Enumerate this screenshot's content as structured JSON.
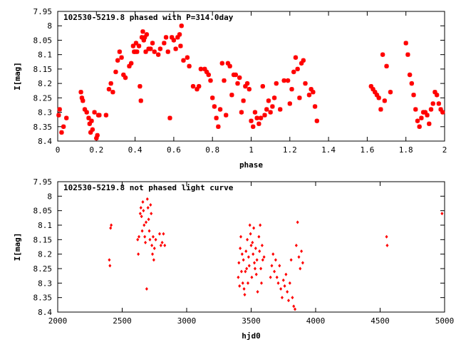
{
  "chart_data": [
    {
      "type": "scatter",
      "title": "102530-5219.8 phased with P=314.0day",
      "xlabel": "phase",
      "ylabel": "I[mag]",
      "xlim": [
        0,
        2
      ],
      "ylim": [
        8.4,
        7.95
      ],
      "y_inverted": true,
      "grid": false,
      "marker": "asterisk",
      "color": "#ff0000",
      "xticks": [
        "0",
        "0.2",
        "0.4",
        "0.6",
        "0.8",
        "1",
        "1.2",
        "1.4",
        "1.6",
        "1.8",
        "2"
      ],
      "yticks": [
        "7.95",
        "8",
        "8.05",
        "8.1",
        "8.15",
        "8.2",
        "8.25",
        "8.3",
        "8.35",
        "8.4"
      ],
      "x": [
        0.005,
        0.01,
        0.02,
        0.03,
        0.045,
        0.12,
        0.125,
        0.13,
        0.14,
        0.15,
        0.16,
        0.165,
        0.17,
        0.175,
        0.18,
        0.19,
        0.2,
        0.205,
        0.21,
        0.215,
        0.25,
        0.265,
        0.275,
        0.285,
        0.3,
        0.31,
        0.32,
        0.33,
        0.34,
        0.35,
        0.37,
        0.38,
        0.39,
        0.395,
        0.4,
        0.405,
        0.41,
        0.42,
        0.425,
        0.43,
        0.435,
        0.44,
        0.445,
        0.45,
        0.455,
        0.46,
        0.47,
        0.48,
        0.49,
        0.5,
        0.52,
        0.53,
        0.55,
        0.56,
        0.57,
        0.58,
        0.59,
        0.6,
        0.61,
        0.62,
        0.63,
        0.635,
        0.64,
        0.65,
        0.67,
        0.68,
        0.7,
        0.72,
        0.73,
        0.74,
        0.76,
        0.77,
        0.78,
        0.79,
        0.8,
        0.81,
        0.82,
        0.83,
        0.84,
        0.85,
        0.86,
        0.87,
        0.88,
        0.89,
        0.9,
        0.91,
        0.92,
        0.93,
        0.94,
        0.95,
        0.96,
        0.97,
        0.98,
        0.99,
        1.0,
        1.01,
        1.02,
        1.03,
        1.04,
        1.05,
        1.06,
        1.07,
        1.08,
        1.09,
        1.1,
        1.11,
        1.12,
        1.13,
        1.15,
        1.17,
        1.19,
        1.2,
        1.21,
        1.22,
        1.23,
        1.24,
        1.25,
        1.26,
        1.27,
        1.28,
        1.3,
        1.31,
        1.32,
        1.33,
        1.34,
        1.62,
        1.63,
        1.64,
        1.65,
        1.66,
        1.67,
        1.68,
        1.69,
        1.7,
        1.72,
        1.8,
        1.81,
        1.82,
        1.83,
        1.84,
        1.85,
        1.86,
        1.87,
        1.88,
        1.89,
        1.9,
        1.91,
        1.92,
        1.93,
        1.94,
        1.95,
        1.96,
        1.97,
        1.98,
        1.99
      ],
      "y": [
        8.31,
        8.29,
        8.37,
        8.35,
        8.32,
        8.23,
        8.25,
        8.26,
        8.29,
        8.3,
        8.32,
        8.34,
        8.37,
        8.33,
        8.36,
        8.3,
        8.39,
        8.38,
        8.31,
        8.31,
        8.31,
        8.22,
        8.2,
        8.23,
        8.16,
        8.12,
        8.09,
        8.11,
        8.17,
        8.18,
        8.14,
        8.13,
        8.07,
        8.09,
        8.09,
        8.06,
        8.09,
        8.07,
        8.21,
        8.26,
        8.04,
        8.02,
        8.05,
        8.04,
        8.09,
        8.03,
        8.08,
        8.08,
        8.06,
        8.09,
        8.1,
        8.08,
        8.06,
        8.04,
        8.09,
        8.32,
        8.04,
        8.05,
        8.08,
        8.04,
        8.03,
        8.07,
        8,
        8.12,
        8.11,
        8.14,
        8.21,
        8.22,
        8.21,
        8.15,
        8.15,
        8.16,
        8.17,
        8.19,
        8.25,
        8.28,
        8.32,
        8.35,
        8.29,
        8.13,
        8.19,
        8.31,
        8.13,
        8.14,
        8.24,
        8.17,
        8.17,
        8.2,
        8.18,
        8.3,
        8.26,
        8.21,
        8.2,
        8.22,
        8.33,
        8.35,
        8.3,
        8.32,
        8.34,
        8.32,
        8.21,
        8.31,
        8.29,
        8.26,
        8.3,
        8.28,
        8.25,
        8.2,
        8.29,
        8.19,
        8.19,
        8.27,
        8.22,
        8.16,
        8.11,
        8.15,
        8.25,
        8.13,
        8.12,
        8.2,
        8.24,
        8.22,
        8.23,
        8.28,
        8.33,
        8.21,
        8.22,
        8.23,
        8.24,
        8.25,
        8.29,
        8.1,
        8.26,
        8.14,
        8.23,
        8.06,
        8.1,
        8.17,
        8.2,
        8.24,
        8.29,
        8.33,
        8.35,
        8.32,
        8.3,
        8.3,
        8.31,
        8.34,
        8.29,
        8.27,
        8.23,
        8.24,
        8.27,
        8.29,
        8.3
      ]
    },
    {
      "type": "scatter",
      "title": "102530-5219.8 not phased light curve",
      "xlabel": "hjd0",
      "ylabel": "I[mag]",
      "xlim": [
        2000,
        5000
      ],
      "ylim": [
        8.4,
        7.95
      ],
      "y_inverted": true,
      "grid": false,
      "marker": "diamond",
      "color": "#ff0000",
      "xticks": [
        "2000",
        "2500",
        "3000",
        "3500",
        "4000",
        "4500",
        "5000"
      ],
      "yticks": [
        "7.95",
        "8",
        "8.05",
        "8.1",
        "8.15",
        "8.2",
        "8.25",
        "8.3",
        "8.35",
        "8.4"
      ],
      "x": [
        2400,
        2405,
        2410,
        2415,
        2620,
        2625,
        2630,
        2640,
        2645,
        2650,
        2655,
        2660,
        2665,
        2670,
        2675,
        2680,
        2685,
        2690,
        2695,
        2700,
        2705,
        2710,
        2715,
        2720,
        2725,
        2730,
        2735,
        2740,
        2745,
        2750,
        2760,
        2790,
        2800,
        2810,
        2820,
        2830,
        3400,
        3405,
        3410,
        3415,
        3420,
        3425,
        3430,
        3435,
        3440,
        3445,
        3450,
        3455,
        3460,
        3465,
        3470,
        3475,
        3480,
        3485,
        3490,
        3495,
        3500,
        3505,
        3510,
        3515,
        3520,
        3525,
        3530,
        3535,
        3540,
        3545,
        3550,
        3560,
        3565,
        3570,
        3575,
        3580,
        3585,
        3590,
        3600,
        3650,
        3660,
        3670,
        3680,
        3690,
        3700,
        3710,
        3720,
        3730,
        3740,
        3750,
        3760,
        3770,
        3780,
        3790,
        3800,
        3810,
        3820,
        3830,
        3840,
        3850,
        3860,
        3870,
        3880,
        3890,
        3900,
        4550,
        4555,
        4980
      ],
      "y": [
        8.22,
        8.24,
        8.11,
        8.1,
        8.15,
        8.2,
        8.14,
        8.06,
        8.04,
        8.07,
        8.12,
        8.02,
        8.05,
        8.1,
        8.14,
        8.16,
        8.09,
        8.32,
        8.01,
        8.04,
        8.08,
        8.12,
        8.15,
        8.03,
        8.06,
        8.17,
        8.2,
        8.14,
        8.22,
        8.18,
        8.15,
        8.13,
        8.17,
        8.16,
        8.13,
        8.17,
        8.28,
        8.23,
        8.31,
        8.18,
        8.14,
        8.26,
        8.2,
        8.3,
        8.22,
        8.32,
        8.34,
        8.26,
        8.19,
        8.25,
        8.15,
        8.3,
        8.21,
        8.24,
        8.1,
        8.13,
        8.17,
        8.28,
        8.16,
        8.2,
        8.11,
        8.23,
        8.25,
        8.18,
        8.27,
        8.22,
        8.33,
        8.14,
        8.19,
        8.1,
        8.25,
        8.3,
        8.17,
        8.22,
        8.21,
        8.28,
        8.24,
        8.2,
        8.26,
        8.22,
        8.28,
        8.3,
        8.24,
        8.32,
        8.35,
        8.29,
        8.31,
        8.27,
        8.33,
        8.36,
        8.3,
        8.22,
        8.35,
        8.38,
        8.39,
        8.17,
        8.09,
        8.21,
        8.25,
        8.19,
        8.23,
        8.14,
        8.17,
        8.06
      ]
    }
  ]
}
